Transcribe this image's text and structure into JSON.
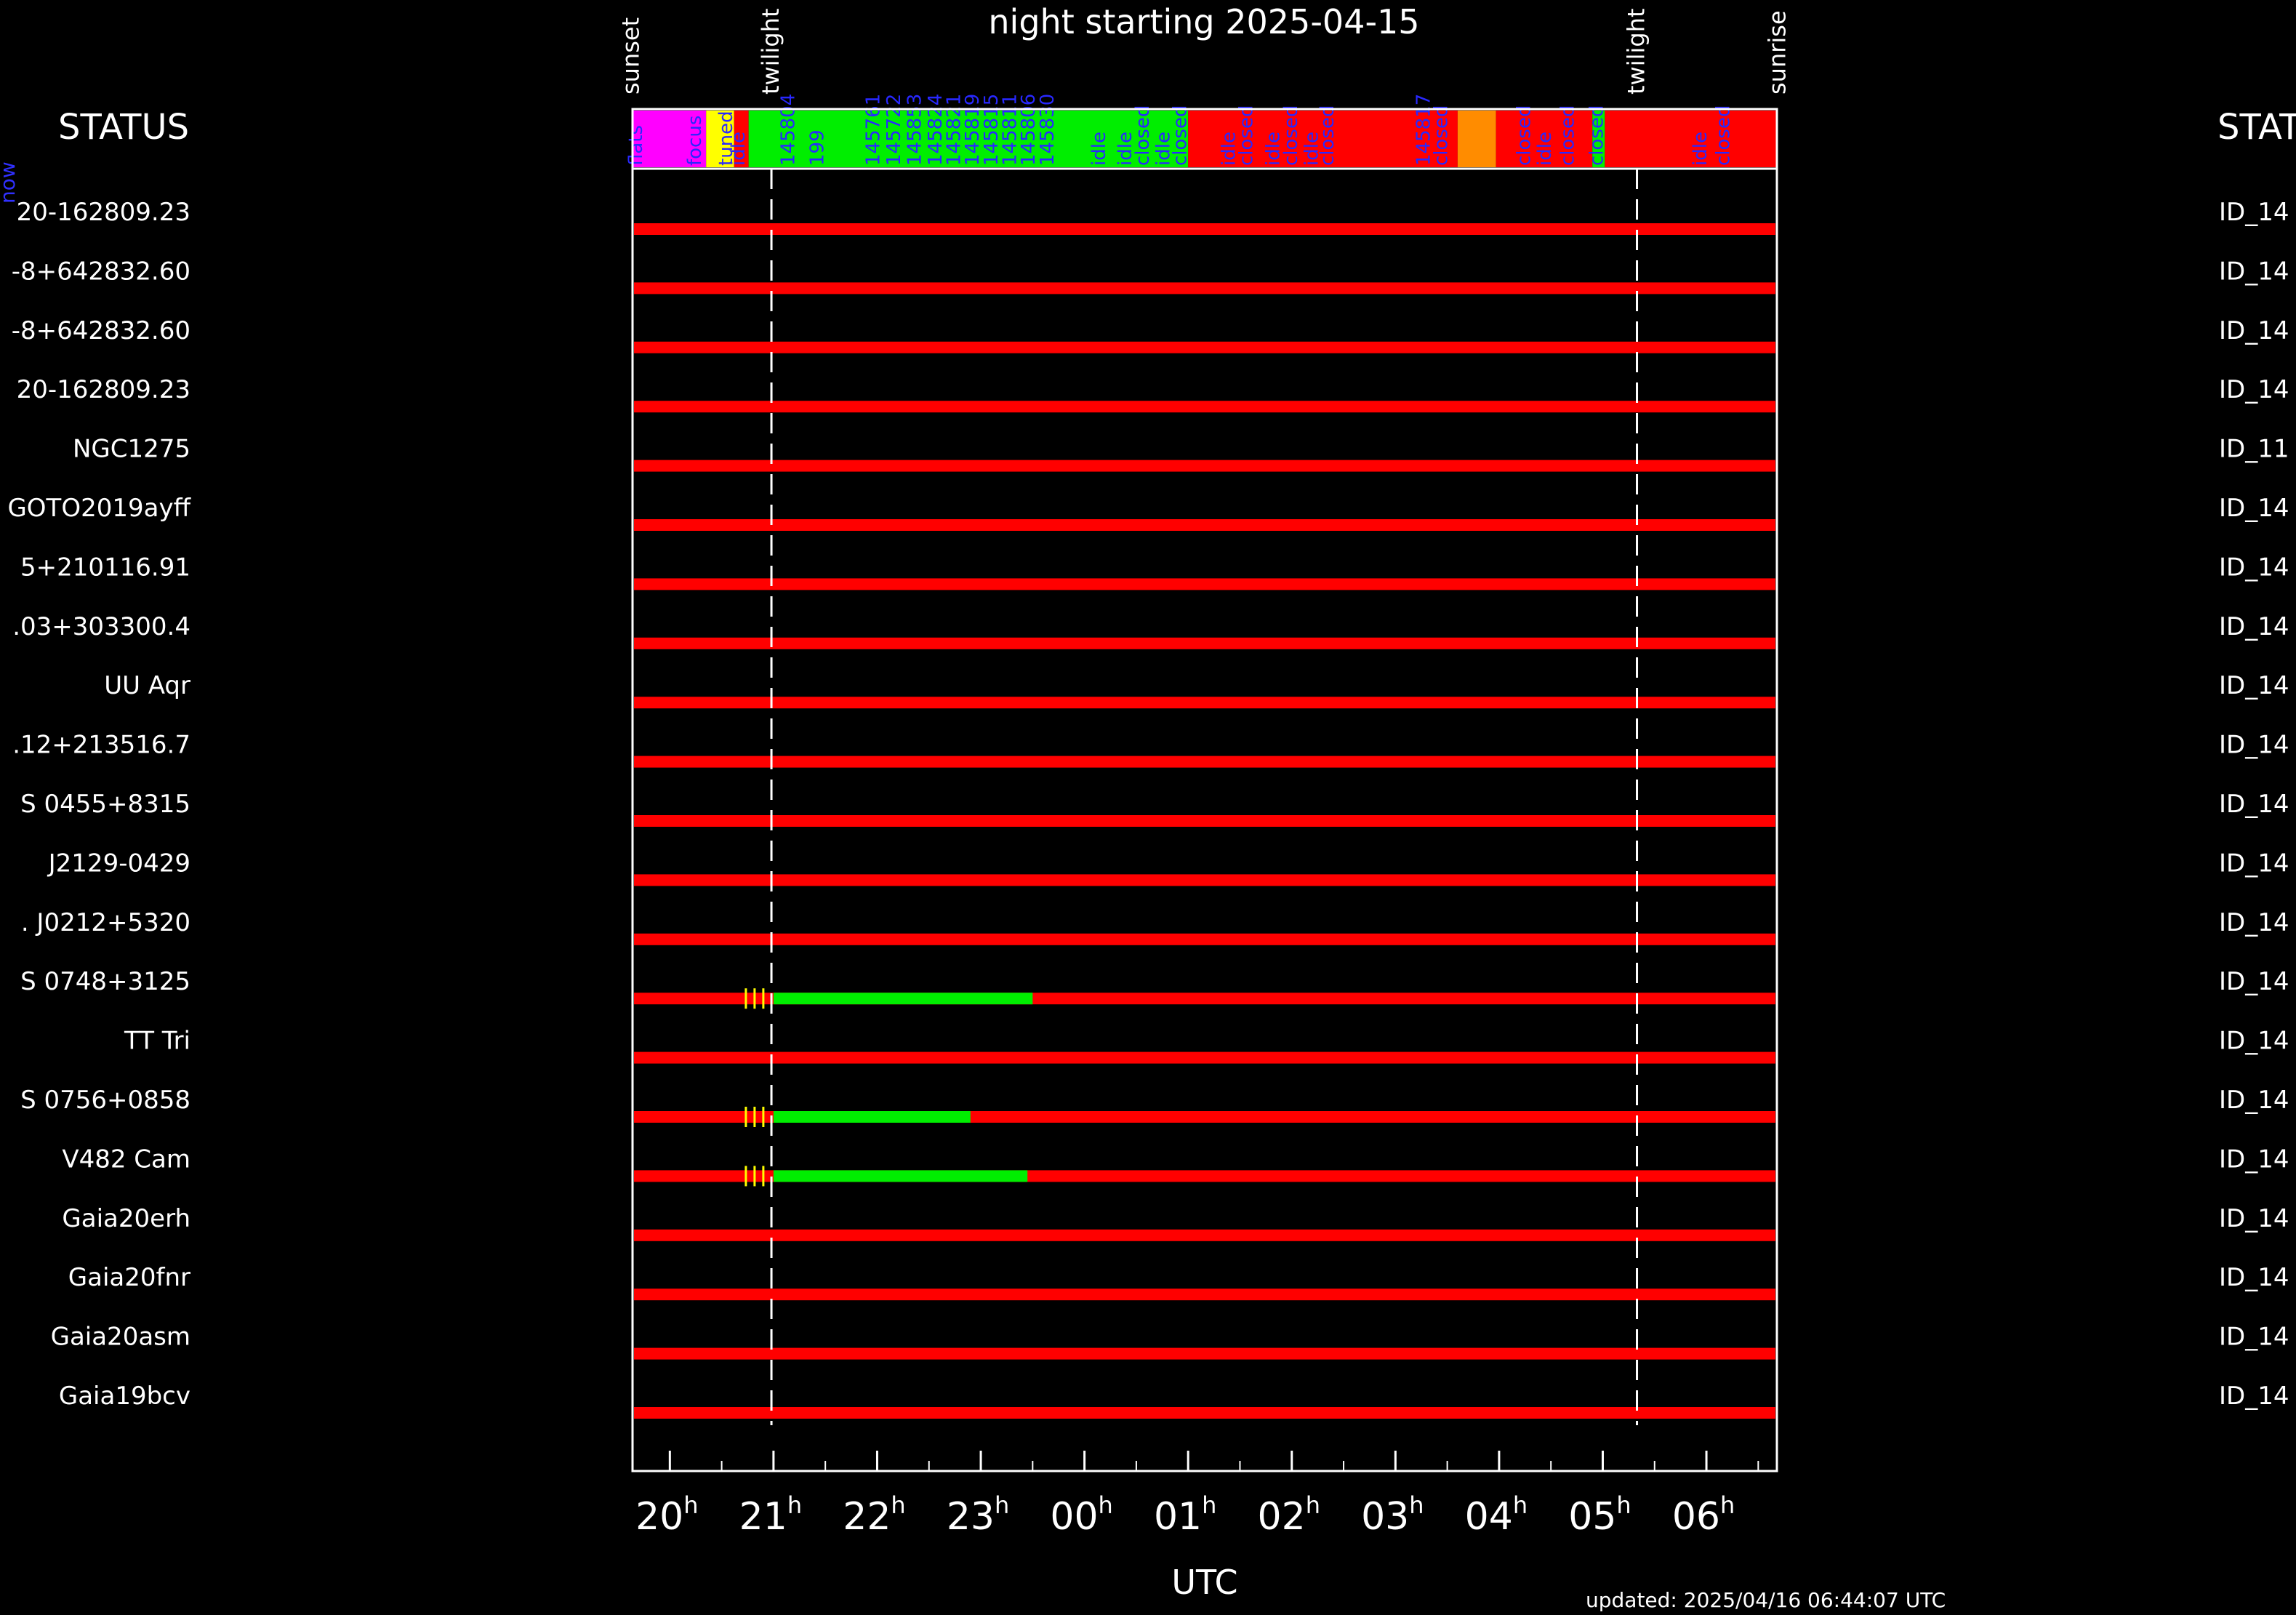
{
  "chart_data": {
    "type": "timeline",
    "title": "night starting 2025-04-15",
    "xlabel": "UTC",
    "updated": "updated: 2025/04/16 06:44:07 UTC",
    "status_label_left": "STATUS",
    "status_label_right": "STAT",
    "status_row_side_label": "now",
    "x_range_hours": [
      19.64,
      30.68
    ],
    "ticks": [
      {
        "base": "20",
        "sup": "h",
        "hour": 20
      },
      {
        "base": "21",
        "sup": "h",
        "hour": 21
      },
      {
        "base": "22",
        "sup": "h",
        "hour": 22
      },
      {
        "base": "23",
        "sup": "h",
        "hour": 23
      },
      {
        "base": "00",
        "sup": "h",
        "hour": 24
      },
      {
        "base": "01",
        "sup": "h",
        "hour": 25
      },
      {
        "base": "02",
        "sup": "h",
        "hour": 26
      },
      {
        "base": "03",
        "sup": "h",
        "hour": 27
      },
      {
        "base": "04",
        "sup": "h",
        "hour": 28
      },
      {
        "base": "05",
        "sup": "h",
        "hour": 29
      },
      {
        "base": "06",
        "sup": "h",
        "hour": 30
      }
    ],
    "events": [
      {
        "label": "sunset",
        "hour": 19.63
      },
      {
        "label": "twilight",
        "hour": 20.98,
        "dashed": true
      },
      {
        "label": "twilight",
        "hour": 29.33,
        "dashed": true
      },
      {
        "label": "sunrise",
        "hour": 30.69
      }
    ],
    "status_segments": [
      {
        "start": 19.64,
        "end": 20.35,
        "color": "#ff00ff"
      },
      {
        "start": 20.35,
        "end": 20.62,
        "color": "#ffff00"
      },
      {
        "start": 20.62,
        "end": 20.76,
        "color": "#ff0000"
      },
      {
        "start": 20.76,
        "end": 25.0,
        "color": "#00ee00"
      },
      {
        "start": 25.0,
        "end": 27.6,
        "color": "#ff0000"
      },
      {
        "start": 27.6,
        "end": 27.97,
        "color": "#ff8c00"
      },
      {
        "start": 27.97,
        "end": 28.9,
        "color": "#ff0000"
      },
      {
        "start": 28.9,
        "end": 29.02,
        "color": "#00ee00"
      },
      {
        "start": 29.02,
        "end": 30.68,
        "color": "#ff0000"
      }
    ],
    "status_labels": [
      {
        "text": "flats",
        "hour": 19.73
      },
      {
        "text": "focus",
        "hour": 20.3
      },
      {
        "text": "tuned",
        "hour": 20.6
      },
      {
        "text": "idle",
        "hour": 20.72
      },
      {
        "text": "145804",
        "hour": 21.2
      },
      {
        "text": "199",
        "hour": 21.48
      },
      {
        "text": "145761",
        "hour": 22.02
      },
      {
        "text": "145722",
        "hour": 22.22
      },
      {
        "text": "145853",
        "hour": 22.42
      },
      {
        "text": "145824",
        "hour": 22.62
      },
      {
        "text": "145821",
        "hour": 22.8
      },
      {
        "text": "145819",
        "hour": 22.98
      },
      {
        "text": "145815",
        "hour": 23.16
      },
      {
        "text": "145811",
        "hour": 23.34
      },
      {
        "text": "145806",
        "hour": 23.52
      },
      {
        "text": "145830",
        "hour": 23.7
      },
      {
        "text": "idle",
        "hour": 24.2
      },
      {
        "text": "idle",
        "hour": 24.45
      },
      {
        "text": "closed",
        "hour": 24.62
      },
      {
        "text": "idle",
        "hour": 24.82
      },
      {
        "text": "closed",
        "hour": 24.98
      },
      {
        "text": "idle",
        "hour": 25.45
      },
      {
        "text": "closed",
        "hour": 25.62
      },
      {
        "text": "idle",
        "hour": 25.88
      },
      {
        "text": "closed",
        "hour": 26.05
      },
      {
        "text": "idle",
        "hour": 26.25
      },
      {
        "text": "closed",
        "hour": 26.4
      },
      {
        "text": "145817",
        "hour": 27.33
      },
      {
        "text": "closed",
        "hour": 27.5
      },
      {
        "text": "closed",
        "hour": 28.3
      },
      {
        "text": "idle",
        "hour": 28.5
      },
      {
        "text": "closed",
        "hour": 28.72
      },
      {
        "text": "closed",
        "hour": 29.0
      },
      {
        "text": "idle",
        "hour": 30.0
      },
      {
        "text": "closed",
        "hour": 30.22
      }
    ],
    "targets": [
      {
        "name": "20-162809.23",
        "id": "ID_14",
        "green": null
      },
      {
        "name": "-8+642832.60",
        "id": "ID_14",
        "green": null
      },
      {
        "name": "-8+642832.60",
        "id": "ID_14",
        "green": null
      },
      {
        "name": "20-162809.23",
        "id": "ID_14",
        "green": null
      },
      {
        "name": "NGC1275",
        "id": "ID_11",
        "green": null
      },
      {
        "name": "GOTO2019ayff",
        "id": "ID_14",
        "green": null
      },
      {
        "name": "5+210116.91",
        "id": "ID_14",
        "green": null
      },
      {
        "name": ".03+303300.4",
        "id": "ID_14",
        "green": null
      },
      {
        "name": "UU Aqr",
        "id": "ID_14",
        "green": null
      },
      {
        "name": ".12+213516.7",
        "id": "ID_14",
        "green": null
      },
      {
        "name": "S 0455+8315",
        "id": "ID_14",
        "green": null
      },
      {
        "name": "J2129-0429",
        "id": "ID_14",
        "green": null
      },
      {
        "name": ". J0212+5320",
        "id": "ID_14",
        "green": null
      },
      {
        "name": "S 0748+3125",
        "id": "ID_14",
        "green": [
          21.0,
          23.5
        ]
      },
      {
        "name": "TT Tri",
        "id": "ID_14",
        "green": null
      },
      {
        "name": "S 0756+0858",
        "id": "ID_14",
        "green": [
          21.0,
          22.9
        ]
      },
      {
        "name": "V482 Cam",
        "id": "ID_14",
        "green": [
          21.0,
          23.45
        ]
      },
      {
        "name": "Gaia20erh",
        "id": "ID_14",
        "green": null
      },
      {
        "name": "Gaia20fnr",
        "id": "ID_14",
        "green": null
      },
      {
        "name": "Gaia20asm",
        "id": "ID_14",
        "green": null
      },
      {
        "name": "Gaia19bcv",
        "id": "ID_14",
        "green": null
      }
    ]
  }
}
